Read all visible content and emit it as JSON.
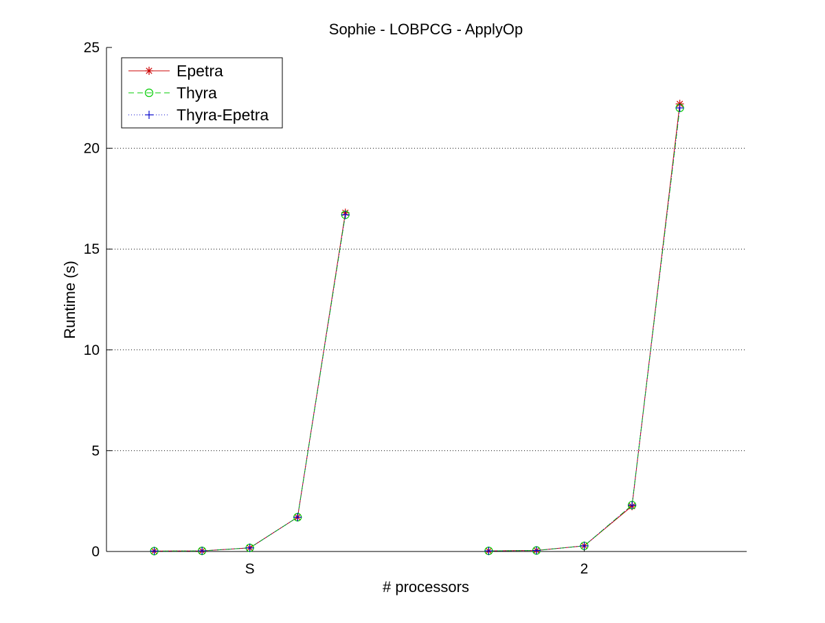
{
  "chart_data": {
    "type": "line",
    "title": "Sophie - LOBPCG - ApplyOp",
    "xlabel": "# processors",
    "ylabel": "Runtime (s)",
    "ylim": [
      0,
      25
    ],
    "yticks": [
      "0",
      "5",
      "10",
      "15",
      "20",
      "25"
    ],
    "xtick_labels": [
      "S",
      "2"
    ],
    "grid": "horizontal dotted",
    "legend_position": "top-left",
    "groups": [
      {
        "label": "S",
        "x": [
          1,
          2,
          3,
          4,
          5
        ],
        "series": [
          {
            "name": "Epetra",
            "values": [
              0.02,
              0.03,
              0.18,
              1.7,
              16.8
            ]
          },
          {
            "name": "Thyra",
            "values": [
              0.02,
              0.03,
              0.18,
              1.7,
              16.7
            ]
          },
          {
            "name": "Thyra-Epetra",
            "values": [
              0.02,
              0.03,
              0.18,
              1.7,
              16.7
            ]
          }
        ]
      },
      {
        "label": "2",
        "x": [
          8,
          9,
          10,
          11,
          12
        ],
        "series": [
          {
            "name": "Epetra",
            "values": [
              0.03,
              0.05,
              0.28,
              2.25,
              22.2
            ]
          },
          {
            "name": "Thyra",
            "values": [
              0.03,
              0.05,
              0.28,
              2.3,
              22.0
            ]
          },
          {
            "name": "Thyra-Epetra",
            "values": [
              0.03,
              0.05,
              0.28,
              2.3,
              22.0
            ]
          }
        ]
      }
    ],
    "legend": [
      {
        "name": "Epetra",
        "color": "#cc0000",
        "marker": "asterisk",
        "line": "solid"
      },
      {
        "name": "Thyra",
        "color": "#00cc00",
        "marker": "circle",
        "line": "dashed"
      },
      {
        "name": "Thyra-Epetra",
        "color": "#0000cc",
        "marker": "plus",
        "line": "dotted"
      }
    ]
  }
}
